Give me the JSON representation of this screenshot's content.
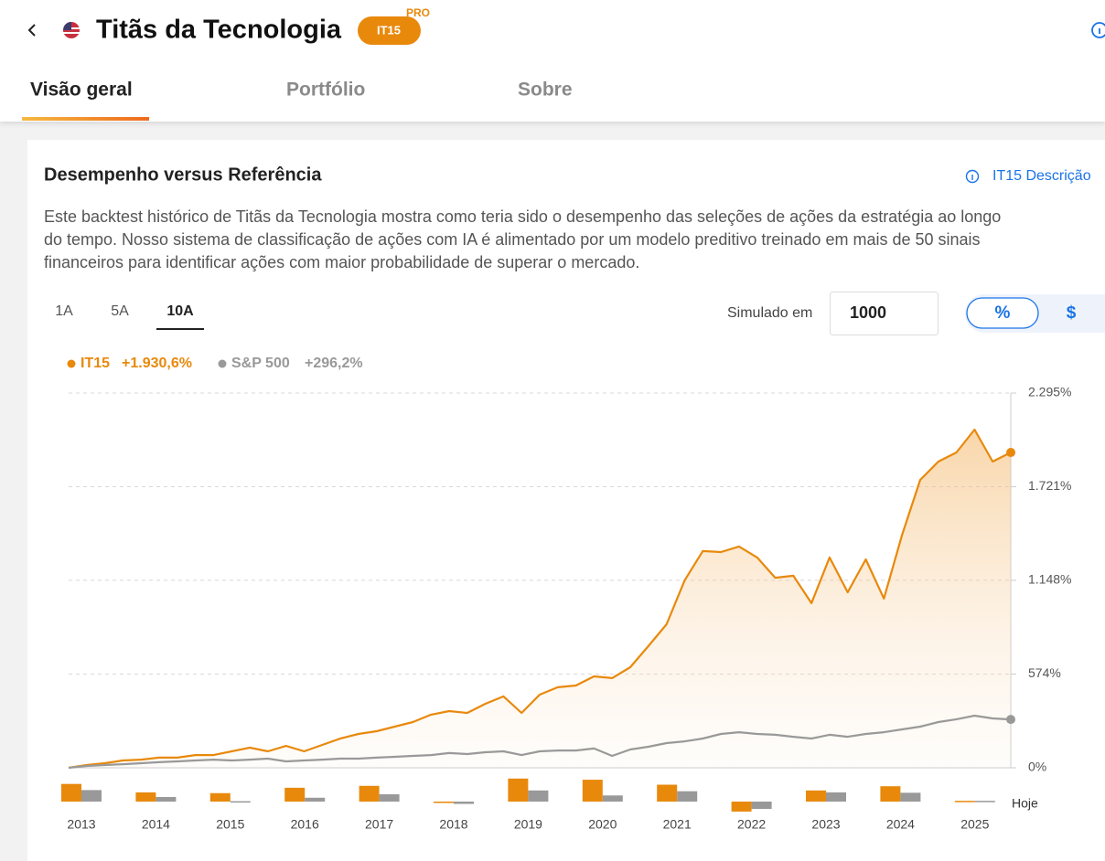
{
  "header": {
    "title": "Titãs da Tecnologia",
    "badge": "IT15",
    "badge_tag": "PRO"
  },
  "tabs": [
    "Visão geral",
    "Portfólio",
    "Sobre"
  ],
  "card": {
    "title": "Desempenho versus Referência",
    "link": "IT15 Descrição",
    "description": [
      "Este backtest histórico de Titãs da Tecnologia mostra como teria sido o desempenho das seleções de ações da estratégia ao longo",
      "do tempo. Nosso sistema de classificação de ações com IA é alimentado por um modelo preditivo treinado em mais de 50 sinais",
      "financeiros para identificar ações com maior probabilidade de superar o mercado."
    ]
  },
  "controls": {
    "periods": [
      "1A",
      "5A",
      "10A"
    ],
    "simulated_label": "Simulado em",
    "amount": "1000",
    "units": [
      "%",
      "$"
    ]
  },
  "chart_data": [
    {
      "type": "line",
      "series": [
        {
          "name": "IT15",
          "change_label": "+1.930,6%",
          "color": "#e8890c",
          "values": [
            0,
            17,
            28,
            45,
            50,
            62,
            62,
            78,
            78,
            101,
            123,
            101,
            134,
            101,
            140,
            179,
            207,
            224,
            252,
            280,
            325,
            347,
            336,
            392,
            437,
            336,
            448,
            493,
            504,
            560,
            549,
            616,
            745,
            879,
            1148,
            1327,
            1321,
            1355,
            1288,
            1164,
            1176,
            1008,
            1288,
            1075,
            1276,
            1036,
            1427,
            1763,
            1875,
            1931,
            2071,
            1875,
            1931
          ]
        },
        {
          "name": "S&P 500",
          "change_label": "+296,2%",
          "color": "#999999",
          "values": [
            0,
            11,
            17,
            22,
            28,
            34,
            39,
            45,
            50,
            45,
            50,
            56,
            39,
            45,
            50,
            56,
            56,
            62,
            67,
            73,
            78,
            90,
            84,
            95,
            101,
            78,
            101,
            106,
            106,
            118,
            73,
            112,
            129,
            151,
            162,
            179,
            207,
            218,
            207,
            202,
            190,
            179,
            202,
            190,
            207,
            218,
            235,
            252,
            280,
            297,
            319,
            302,
            296
          ]
        }
      ],
      "ylim": [
        0,
        2295
      ],
      "yticks": [
        {
          "value": 0,
          "label": "0%"
        },
        {
          "value": 574,
          "label": "574%"
        },
        {
          "value": 1148,
          "label": "1.148%"
        },
        {
          "value": 1721,
          "label": "1.721%"
        },
        {
          "value": 2295,
          "label": "2.295%"
        }
      ],
      "grid": true
    },
    {
      "type": "bar",
      "categories": [
        "2013",
        "2014",
        "2015",
        "2016",
        "2017",
        "2018",
        "2019",
        "2020",
        "2021",
        "2022",
        "2023",
        "2024",
        "2025"
      ],
      "series": [
        {
          "color": "#e8890c",
          "values": [
            46,
            24,
            22,
            36,
            41,
            -2,
            60,
            57,
            44,
            -26,
            29,
            40,
            2
          ]
        },
        {
          "color": "#999999",
          "values": [
            30,
            12,
            1,
            10,
            19,
            -6,
            29,
            16,
            27,
            -19,
            24,
            23,
            2
          ]
        }
      ],
      "end_label": "Hoje"
    }
  ]
}
